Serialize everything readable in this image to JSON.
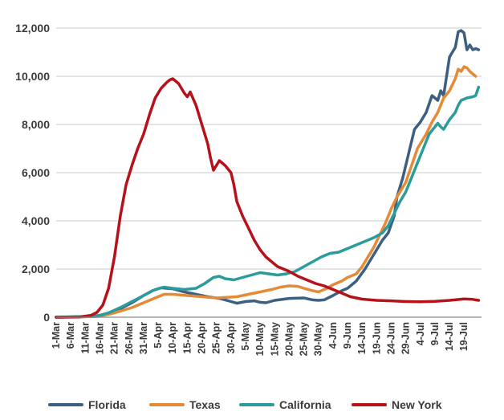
{
  "chart_data": {
    "type": "line",
    "title": "",
    "xlabel": "",
    "ylabel": "",
    "ylim": [
      0,
      12000
    ],
    "yticks": [
      0,
      2000,
      4000,
      6000,
      8000,
      10000,
      12000
    ],
    "ytick_labels": [
      "0",
      "2,000",
      "4,000",
      "6,000",
      "8,000",
      "10,000",
      "12,000"
    ],
    "x_tick_labels": [
      "1-Mar",
      "6-Mar",
      "11-Mar",
      "16-Mar",
      "21-Mar",
      "26-Mar",
      "31-Mar",
      "5-Apr",
      "10-Apr",
      "15-Apr",
      "20-Apr",
      "25-Apr",
      "30-Apr",
      "5-May",
      "10-May",
      "15-May",
      "20-May",
      "25-May",
      "30-May",
      "4-Jun",
      "9-Jun",
      "14-Jun",
      "19-Jun",
      "24-Jun",
      "29-Jun",
      "4-Jul",
      "9-Jul",
      "14-Jul",
      "19-Jul"
    ],
    "x_tick_days": [
      0,
      5,
      10,
      15,
      20,
      25,
      30,
      35,
      40,
      45,
      50,
      55,
      60,
      65,
      70,
      75,
      80,
      85,
      90,
      95,
      100,
      105,
      110,
      115,
      120,
      125,
      130,
      135,
      140
    ],
    "x_start_date": "1-Mar",
    "x_end_day": 146,
    "grid": "horizontal",
    "legend_position": "bottom",
    "series": [
      {
        "name": "Florida",
        "color": "#3d5f82",
        "points": [
          [
            0,
            0
          ],
          [
            10,
            20
          ],
          [
            14,
            60
          ],
          [
            18,
            150
          ],
          [
            22,
            350
          ],
          [
            26,
            600
          ],
          [
            30,
            900
          ],
          [
            33,
            1100
          ],
          [
            36,
            1220
          ],
          [
            40,
            1180
          ],
          [
            44,
            1050
          ],
          [
            48,
            950
          ],
          [
            52,
            850
          ],
          [
            56,
            780
          ],
          [
            58,
            720
          ],
          [
            60,
            650
          ],
          [
            62,
            580
          ],
          [
            65,
            650
          ],
          [
            68,
            680
          ],
          [
            70,
            620
          ],
          [
            72,
            600
          ],
          [
            75,
            700
          ],
          [
            80,
            780
          ],
          [
            85,
            800
          ],
          [
            88,
            720
          ],
          [
            90,
            700
          ],
          [
            92,
            720
          ],
          [
            95,
            900
          ],
          [
            98,
            1100
          ],
          [
            100,
            1200
          ],
          [
            103,
            1500
          ],
          [
            106,
            2000
          ],
          [
            109,
            2600
          ],
          [
            112,
            3200
          ],
          [
            114,
            3500
          ],
          [
            116,
            4200
          ],
          [
            117,
            5000
          ],
          [
            119,
            5800
          ],
          [
            121,
            6800
          ],
          [
            123,
            7800
          ],
          [
            125,
            8100
          ],
          [
            127,
            8500
          ],
          [
            129,
            9200
          ],
          [
            131,
            9000
          ],
          [
            132,
            9400
          ],
          [
            133,
            9200
          ],
          [
            135,
            10800
          ],
          [
            137,
            11200
          ],
          [
            138,
            11850
          ],
          [
            139,
            11900
          ],
          [
            140,
            11800
          ],
          [
            141,
            11100
          ],
          [
            142,
            11300
          ],
          [
            143,
            11100
          ],
          [
            144,
            11150
          ],
          [
            145,
            11100
          ]
        ]
      },
      {
        "name": "Texas",
        "color": "#e58a36",
        "points": [
          [
            0,
            0
          ],
          [
            14,
            30
          ],
          [
            18,
            120
          ],
          [
            22,
            250
          ],
          [
            26,
            400
          ],
          [
            30,
            600
          ],
          [
            34,
            800
          ],
          [
            37,
            950
          ],
          [
            40,
            950
          ],
          [
            45,
            900
          ],
          [
            50,
            850
          ],
          [
            55,
            800
          ],
          [
            58,
            820
          ],
          [
            62,
            850
          ],
          [
            66,
            950
          ],
          [
            70,
            1050
          ],
          [
            74,
            1150
          ],
          [
            77,
            1250
          ],
          [
            80,
            1300
          ],
          [
            83,
            1280
          ],
          [
            85,
            1200
          ],
          [
            88,
            1100
          ],
          [
            90,
            1050
          ],
          [
            93,
            1200
          ],
          [
            95,
            1350
          ],
          [
            98,
            1500
          ],
          [
            100,
            1650
          ],
          [
            103,
            1800
          ],
          [
            105,
            2100
          ],
          [
            107,
            2500
          ],
          [
            109,
            2900
          ],
          [
            111,
            3400
          ],
          [
            113,
            3900
          ],
          [
            115,
            4500
          ],
          [
            117,
            5000
          ],
          [
            120,
            5600
          ],
          [
            122,
            6300
          ],
          [
            124,
            7000
          ],
          [
            127,
            7600
          ],
          [
            129,
            8100
          ],
          [
            131,
            8500
          ],
          [
            133,
            9100
          ],
          [
            135,
            9400
          ],
          [
            137,
            9900
          ],
          [
            138,
            10300
          ],
          [
            139,
            10200
          ],
          [
            140,
            10400
          ],
          [
            141,
            10350
          ],
          [
            142,
            10200
          ],
          [
            143,
            10100
          ],
          [
            144,
            10000
          ]
        ]
      },
      {
        "name": "California",
        "color": "#2b9b9b",
        "points": [
          [
            0,
            0
          ],
          [
            14,
            40
          ],
          [
            18,
            180
          ],
          [
            22,
            400
          ],
          [
            26,
            650
          ],
          [
            30,
            900
          ],
          [
            34,
            1150
          ],
          [
            37,
            1250
          ],
          [
            40,
            1200
          ],
          [
            44,
            1150
          ],
          [
            48,
            1200
          ],
          [
            51,
            1400
          ],
          [
            54,
            1650
          ],
          [
            56,
            1700
          ],
          [
            58,
            1600
          ],
          [
            61,
            1550
          ],
          [
            64,
            1650
          ],
          [
            67,
            1750
          ],
          [
            70,
            1850
          ],
          [
            73,
            1800
          ],
          [
            76,
            1750
          ],
          [
            79,
            1800
          ],
          [
            82,
            1900
          ],
          [
            85,
            2100
          ],
          [
            88,
            2300
          ],
          [
            91,
            2500
          ],
          [
            94,
            2650
          ],
          [
            97,
            2700
          ],
          [
            100,
            2850
          ],
          [
            103,
            3000
          ],
          [
            106,
            3150
          ],
          [
            109,
            3300
          ],
          [
            112,
            3500
          ],
          [
            114,
            3800
          ],
          [
            116,
            4300
          ],
          [
            118,
            4800
          ],
          [
            120,
            5200
          ],
          [
            122,
            5800
          ],
          [
            124,
            6400
          ],
          [
            126,
            7000
          ],
          [
            128,
            7600
          ],
          [
            130,
            7900
          ],
          [
            131,
            8050
          ],
          [
            132,
            7900
          ],
          [
            133,
            7800
          ],
          [
            135,
            8200
          ],
          [
            137,
            8500
          ],
          [
            138,
            8800
          ],
          [
            139,
            9000
          ],
          [
            141,
            9100
          ],
          [
            143,
            9150
          ],
          [
            144,
            9200
          ],
          [
            145,
            9550
          ]
        ]
      },
      {
        "name": "New York",
        "color": "#b5121b",
        "points": [
          [
            0,
            0
          ],
          [
            8,
            10
          ],
          [
            12,
            80
          ],
          [
            14,
            200
          ],
          [
            16,
            500
          ],
          [
            18,
            1200
          ],
          [
            20,
            2500
          ],
          [
            22,
            4200
          ],
          [
            24,
            5500
          ],
          [
            26,
            6300
          ],
          [
            28,
            7000
          ],
          [
            30,
            7600
          ],
          [
            32,
            8400
          ],
          [
            34,
            9100
          ],
          [
            36,
            9500
          ],
          [
            38,
            9750
          ],
          [
            39,
            9850
          ],
          [
            40,
            9900
          ],
          [
            42,
            9700
          ],
          [
            44,
            9300
          ],
          [
            45,
            9150
          ],
          [
            46,
            9350
          ],
          [
            48,
            8800
          ],
          [
            50,
            8000
          ],
          [
            52,
            7200
          ],
          [
            53,
            6600
          ],
          [
            54,
            6100
          ],
          [
            56,
            6500
          ],
          [
            58,
            6300
          ],
          [
            60,
            6000
          ],
          [
            61,
            5500
          ],
          [
            62,
            4800
          ],
          [
            64,
            4200
          ],
          [
            66,
            3700
          ],
          [
            68,
            3200
          ],
          [
            70,
            2800
          ],
          [
            72,
            2500
          ],
          [
            74,
            2300
          ],
          [
            76,
            2100
          ],
          [
            78,
            2000
          ],
          [
            80,
            1900
          ],
          [
            83,
            1700
          ],
          [
            86,
            1550
          ],
          [
            89,
            1400
          ],
          [
            92,
            1300
          ],
          [
            95,
            1150
          ],
          [
            98,
            1000
          ],
          [
            101,
            850
          ],
          [
            105,
            750
          ],
          [
            110,
            700
          ],
          [
            115,
            680
          ],
          [
            120,
            650
          ],
          [
            125,
            640
          ],
          [
            130,
            660
          ],
          [
            135,
            700
          ],
          [
            140,
            760
          ],
          [
            143,
            740
          ],
          [
            145,
            700
          ]
        ]
      }
    ]
  }
}
